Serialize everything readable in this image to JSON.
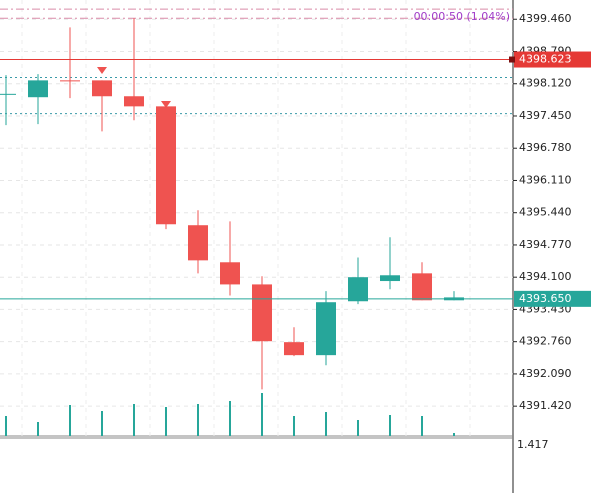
{
  "chart_data": {
    "type": "candlestick",
    "timer_label": "00:00:50 (1.04%)",
    "up_color": "#26a69a",
    "down_color": "#ef5350",
    "grid": true,
    "open": [
      4397.89,
      4397.84,
      4398.19,
      4398.19,
      4397.86,
      4397.65,
      4395.18,
      4394.41,
      4393.95,
      4392.75,
      4392.48,
      4393.6,
      4394.02,
      4394.18,
      4393.62
    ],
    "high": [
      4398.3,
      4398.32,
      4399.29,
      4398.19,
      4399.48,
      4397.69,
      4395.49,
      4395.26,
      4394.12,
      4393.06,
      4393.81,
      4394.51,
      4394.93,
      4394.41,
      4393.81
    ],
    "low": [
      4397.26,
      4397.28,
      4397.82,
      4397.13,
      4397.36,
      4395.1,
      4394.18,
      4393.72,
      4391.77,
      4392.46,
      4392.27,
      4393.54,
      4393.85,
      4393.62,
      4393.62
    ],
    "close": [
      4397.91,
      4398.19,
      4398.17,
      4397.86,
      4397.65,
      4395.2,
      4394.45,
      4393.95,
      4392.77,
      4392.48,
      4393.58,
      4394.1,
      4394.14,
      4393.62,
      4393.68
    ],
    "volume": [
      20,
      14,
      31,
      25,
      32,
      29,
      32,
      35,
      43,
      20,
      24,
      16,
      21,
      20,
      3
    ],
    "volume_lim": [
      0,
      100
    ],
    "ylim": [
      4390.8,
      4399.86
    ],
    "yticks": [
      {
        "value": 4399.46,
        "label": "4399.460"
      },
      {
        "value": 4398.79,
        "label": "4398.790"
      },
      {
        "value": 4398.12,
        "label": "4398.120"
      },
      {
        "value": 4397.45,
        "label": "4397.450"
      },
      {
        "value": 4396.78,
        "label": "4396.780"
      },
      {
        "value": 4396.11,
        "label": "4396.110"
      },
      {
        "value": 4395.44,
        "label": "4395.440"
      },
      {
        "value": 4394.77,
        "label": "4394.770"
      },
      {
        "value": 4394.1,
        "label": "4394.100"
      },
      {
        "value": 4393.43,
        "label": "4393.430"
      },
      {
        "value": 4392.76,
        "label": "4392.760"
      },
      {
        "value": 4392.09,
        "label": "4392.090"
      },
      {
        "value": 4391.42,
        "label": "4391.420"
      }
    ],
    "levels": [
      {
        "value": 4398.623,
        "color": "#e53935"
      },
      {
        "value": 4393.65,
        "label": "4393.650",
        "color": "#26a69a"
      }
    ],
    "dotted_levels": [
      4398.25,
      4397.5
    ],
    "dashdot_levels": [
      4399.67,
      4399.48
    ],
    "indicator_label": "1.417"
  }
}
